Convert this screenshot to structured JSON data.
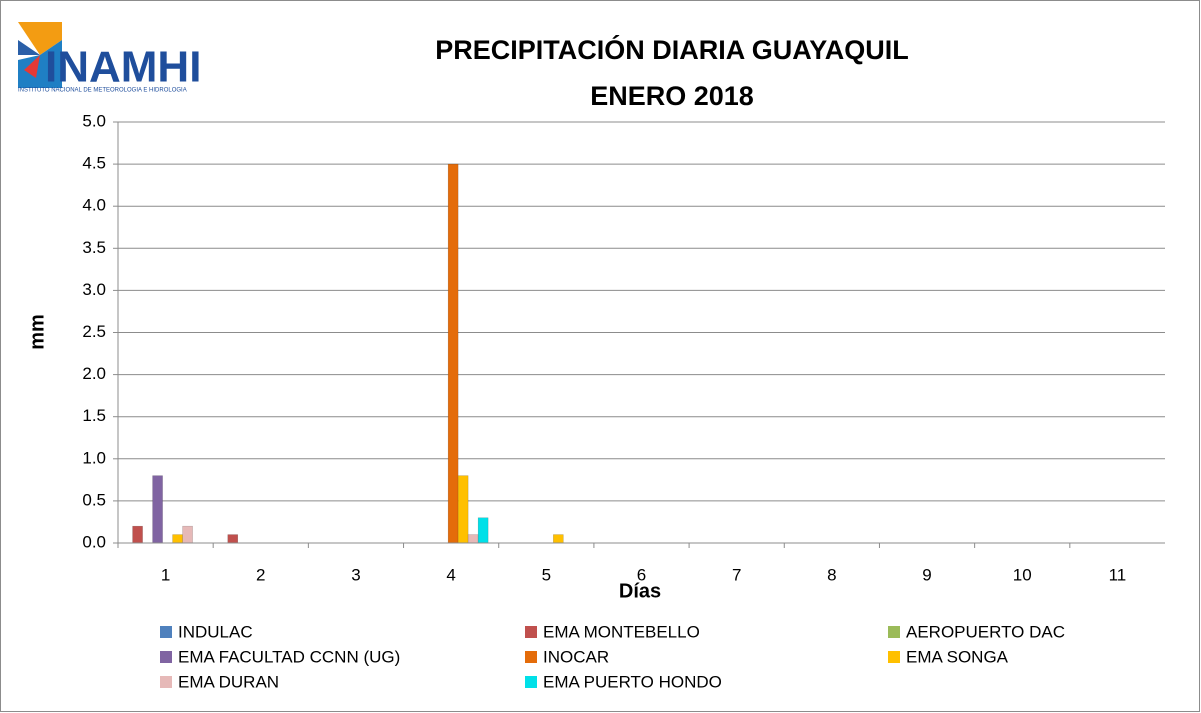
{
  "logo": {
    "name": "INAMHI",
    "subtitle": "INSTITUTO NACIONAL DE METEOROLOGIA E HIDROLOGIA"
  },
  "chart_data": {
    "type": "bar",
    "title": "PRECIPITACIÓN DIARIA GUAYAQUIL",
    "subtitle": "ENERO 2018",
    "x_label": "Días",
    "y_label": "mm",
    "categories": [
      "1",
      "2",
      "3",
      "4",
      "5",
      "6",
      "7",
      "8",
      "9",
      "10",
      "11"
    ],
    "series": [
      {
        "name": "INDULAC",
        "color": "#4f81bd",
        "values": [
          0,
          0,
          0,
          0,
          0,
          0,
          0,
          0,
          0,
          0,
          0
        ]
      },
      {
        "name": "EMA MONTEBELLO",
        "color": "#c0504d",
        "values": [
          0.2,
          0.1,
          0,
          0,
          0,
          0,
          0,
          0,
          0,
          0,
          0
        ]
      },
      {
        "name": "AEROPUERTO DAC",
        "color": "#9bbb59",
        "values": [
          0,
          0,
          0,
          0,
          0,
          0,
          0,
          0,
          0,
          0,
          0
        ]
      },
      {
        "name": "EMA FACULTAD CCNN (UG)",
        "color": "#8064a2",
        "values": [
          0.8,
          0,
          0,
          0,
          0,
          0,
          0,
          0,
          0,
          0,
          0
        ]
      },
      {
        "name": "INOCAR",
        "color": "#e46c0a",
        "values": [
          0,
          0,
          0,
          4.5,
          0,
          0,
          0,
          0,
          0,
          0,
          0
        ]
      },
      {
        "name": "EMA SONGA",
        "color": "#ffc000",
        "values": [
          0.1,
          0,
          0,
          0.8,
          0.1,
          0,
          0,
          0,
          0,
          0,
          0
        ]
      },
      {
        "name": "EMA DURAN",
        "color": "#e6b9b8",
        "values": [
          0.2,
          0,
          0,
          0.1,
          0,
          0,
          0,
          0,
          0,
          0,
          0
        ]
      },
      {
        "name": "EMA PUERTO HONDO",
        "color": "#00e0e8",
        "values": [
          0,
          0,
          0,
          0.3,
          0,
          0,
          0,
          0,
          0,
          0,
          0
        ]
      }
    ],
    "ylim": [
      0,
      5
    ],
    "yticks": [
      {
        "value": 0,
        "label": "0.0"
      },
      0.5,
      {
        "value": 1,
        "label": "1.0"
      },
      1.5,
      {
        "value": 2,
        "label": "2.0"
      },
      2.5,
      {
        "value": 3,
        "label": "3.0"
      },
      3.5,
      {
        "value": 4,
        "label": "4.0"
      },
      4.5,
      {
        "value": 5,
        "label": "5.0"
      }
    ],
    "grid": true,
    "legend": "bottom"
  }
}
